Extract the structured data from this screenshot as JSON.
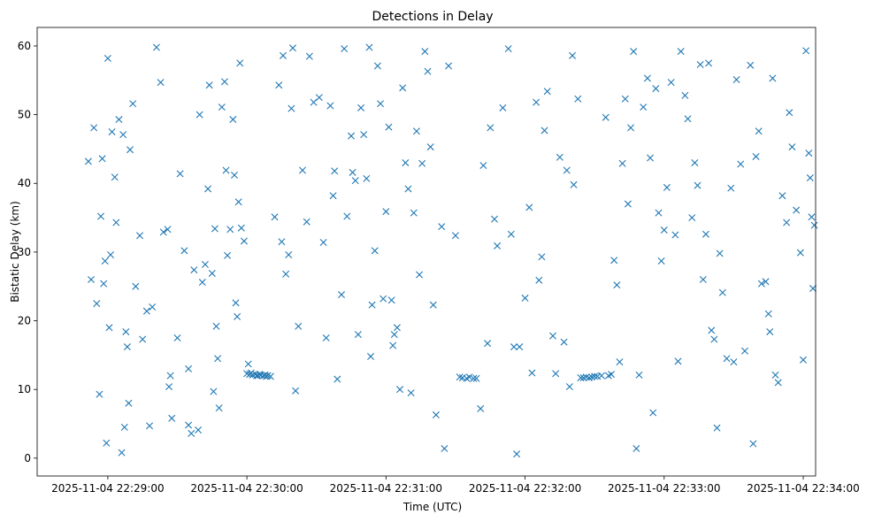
{
  "chart_data": {
    "type": "scatter",
    "title": "Detections in Delay",
    "xlabel": "Time (UTC)",
    "ylabel": "Bistatic Delay (km)",
    "marker": "x",
    "color": "#1f77b4",
    "grid": false,
    "xlim_minutes": [
      -0.508,
      5.089
    ],
    "ylim": [
      -2.6,
      62.7
    ],
    "x_ticks": [
      {
        "value": 0,
        "label": "2025-11-04 22:29:00"
      },
      {
        "value": 1,
        "label": "2025-11-04 22:30:00"
      },
      {
        "value": 2,
        "label": "2025-11-04 22:31:00"
      },
      {
        "value": 3,
        "label": "2025-11-04 22:32:00"
      },
      {
        "value": 4,
        "label": "2025-11-04 22:33:00"
      },
      {
        "value": 5,
        "label": "2025-11-04 22:34:00"
      }
    ],
    "y_ticks": [
      {
        "value": 0,
        "label": "0"
      },
      {
        "value": 10,
        "label": "10"
      },
      {
        "value": 20,
        "label": "20"
      },
      {
        "value": 30,
        "label": "30"
      },
      {
        "value": 40,
        "label": "40"
      },
      {
        "value": 50,
        "label": "50"
      },
      {
        "value": 60,
        "label": "60"
      }
    ],
    "series": [
      {
        "name": "detections",
        "x_unit": "minutes after 2025-11-04 22:29:00",
        "points": [
          [
            -0.14,
            43.2
          ],
          [
            -0.12,
            26.0
          ],
          [
            -0.1,
            48.1
          ],
          [
            -0.08,
            22.5
          ],
          [
            -0.06,
            9.3
          ],
          [
            -0.04,
            43.6
          ],
          [
            -0.05,
            35.2
          ],
          [
            -0.03,
            25.4
          ],
          [
            -0.02,
            28.7
          ],
          [
            -0.01,
            2.2
          ],
          [
            0.0,
            58.2
          ],
          [
            0.01,
            19.0
          ],
          [
            0.02,
            29.6
          ],
          [
            0.03,
            47.5
          ],
          [
            0.05,
            40.9
          ],
          [
            0.06,
            34.3
          ],
          [
            0.08,
            49.3
          ],
          [
            0.1,
            0.8
          ],
          [
            0.11,
            47.1
          ],
          [
            0.12,
            4.5
          ],
          [
            0.13,
            18.4
          ],
          [
            0.14,
            16.2
          ],
          [
            0.15,
            8.0
          ],
          [
            0.16,
            44.9
          ],
          [
            0.18,
            51.6
          ],
          [
            0.2,
            25.0
          ],
          [
            0.23,
            32.4
          ],
          [
            0.25,
            17.3
          ],
          [
            0.28,
            21.4
          ],
          [
            0.3,
            4.7
          ],
          [
            0.32,
            22.0
          ],
          [
            0.35,
            59.8
          ],
          [
            0.38,
            54.7
          ],
          [
            0.4,
            32.9
          ],
          [
            0.43,
            33.3
          ],
          [
            0.45,
            12.0
          ],
          [
            0.44,
            10.4
          ],
          [
            0.46,
            5.8
          ],
          [
            0.5,
            17.5
          ],
          [
            0.52,
            41.4
          ],
          [
            0.55,
            30.2
          ],
          [
            0.58,
            13.0
          ],
          [
            0.58,
            4.8
          ],
          [
            0.6,
            3.6
          ],
          [
            0.62,
            27.4
          ],
          [
            0.65,
            4.1
          ],
          [
            0.66,
            50.0
          ],
          [
            0.68,
            25.6
          ],
          [
            0.7,
            28.2
          ],
          [
            0.72,
            39.2
          ],
          [
            0.73,
            54.3
          ],
          [
            0.75,
            26.9
          ],
          [
            0.76,
            9.7
          ],
          [
            0.77,
            33.4
          ],
          [
            0.78,
            19.2
          ],
          [
            0.79,
            14.5
          ],
          [
            0.8,
            7.3
          ],
          [
            0.82,
            51.1
          ],
          [
            0.84,
            54.8
          ],
          [
            0.85,
            41.9
          ],
          [
            0.86,
            29.5
          ],
          [
            0.88,
            33.3
          ],
          [
            0.9,
            49.3
          ],
          [
            0.91,
            41.2
          ],
          [
            0.92,
            22.6
          ],
          [
            0.93,
            20.6
          ],
          [
            0.94,
            37.3
          ],
          [
            0.95,
            57.5
          ],
          [
            0.96,
            33.5
          ],
          [
            0.98,
            31.6
          ],
          [
            1.0,
            12.3
          ],
          [
            1.01,
            13.7
          ],
          [
            1.02,
            12.2
          ],
          [
            1.03,
            12.4
          ],
          [
            1.04,
            12.1
          ],
          [
            1.06,
            12.2
          ],
          [
            1.07,
            12.0
          ],
          [
            1.08,
            12.0
          ],
          [
            1.09,
            12.2
          ],
          [
            1.1,
            12.1
          ],
          [
            1.12,
            12.0
          ],
          [
            1.13,
            12.1
          ],
          [
            1.14,
            11.9
          ],
          [
            1.15,
            12.0
          ],
          [
            1.17,
            11.9
          ],
          [
            1.2,
            35.1
          ],
          [
            1.23,
            54.3
          ],
          [
            1.25,
            31.5
          ],
          [
            1.26,
            58.6
          ],
          [
            1.28,
            26.8
          ],
          [
            1.3,
            29.6
          ],
          [
            1.32,
            50.9
          ],
          [
            1.33,
            59.7
          ],
          [
            1.35,
            9.8
          ],
          [
            1.37,
            19.2
          ],
          [
            1.4,
            41.9
          ],
          [
            1.43,
            34.4
          ],
          [
            1.45,
            58.5
          ],
          [
            1.48,
            51.8
          ],
          [
            1.52,
            52.5
          ],
          [
            1.55,
            31.4
          ],
          [
            1.57,
            17.5
          ],
          [
            1.6,
            51.3
          ],
          [
            1.62,
            38.2
          ],
          [
            1.63,
            41.8
          ],
          [
            1.65,
            11.5
          ],
          [
            1.68,
            23.8
          ],
          [
            1.7,
            59.6
          ],
          [
            1.72,
            35.2
          ],
          [
            1.75,
            46.9
          ],
          [
            1.76,
            41.6
          ],
          [
            1.78,
            40.4
          ],
          [
            1.8,
            18.0
          ],
          [
            1.82,
            51.0
          ],
          [
            1.84,
            47.1
          ],
          [
            1.86,
            40.7
          ],
          [
            1.88,
            59.8
          ],
          [
            1.89,
            14.8
          ],
          [
            1.9,
            22.3
          ],
          [
            1.92,
            30.2
          ],
          [
            1.94,
            57.1
          ],
          [
            1.96,
            51.6
          ],
          [
            1.98,
            23.2
          ],
          [
            2.0,
            35.9
          ],
          [
            2.02,
            48.2
          ],
          [
            2.04,
            23.0
          ],
          [
            2.05,
            16.4
          ],
          [
            2.06,
            18.0
          ],
          [
            2.08,
            19.0
          ],
          [
            2.1,
            10.0
          ],
          [
            2.12,
            53.9
          ],
          [
            2.14,
            43.0
          ],
          [
            2.16,
            39.2
          ],
          [
            2.18,
            9.5
          ],
          [
            2.2,
            35.7
          ],
          [
            2.22,
            47.6
          ],
          [
            2.24,
            26.7
          ],
          [
            2.26,
            42.9
          ],
          [
            2.28,
            59.2
          ],
          [
            2.3,
            56.3
          ],
          [
            2.32,
            45.3
          ],
          [
            2.34,
            22.3
          ],
          [
            2.36,
            6.3
          ],
          [
            2.4,
            33.7
          ],
          [
            2.42,
            1.4
          ],
          [
            2.45,
            57.1
          ],
          [
            2.5,
            32.4
          ],
          [
            2.53,
            11.8
          ],
          [
            2.55,
            11.7
          ],
          [
            2.58,
            11.6
          ],
          [
            2.6,
            11.8
          ],
          [
            2.63,
            11.6
          ],
          [
            2.65,
            11.6
          ],
          [
            2.68,
            7.2
          ],
          [
            2.7,
            42.6
          ],
          [
            2.73,
            16.7
          ],
          [
            2.75,
            48.1
          ],
          [
            2.78,
            34.8
          ],
          [
            2.8,
            30.9
          ],
          [
            2.84,
            51.0
          ],
          [
            2.88,
            59.6
          ],
          [
            2.9,
            32.6
          ],
          [
            2.92,
            16.2
          ],
          [
            2.94,
            0.6
          ],
          [
            2.96,
            16.2
          ],
          [
            3.0,
            23.3
          ],
          [
            3.03,
            36.5
          ],
          [
            3.05,
            12.4
          ],
          [
            3.08,
            51.8
          ],
          [
            3.1,
            25.9
          ],
          [
            3.12,
            29.3
          ],
          [
            3.14,
            47.7
          ],
          [
            3.16,
            53.4
          ],
          [
            3.2,
            17.8
          ],
          [
            3.22,
            12.3
          ],
          [
            3.25,
            43.8
          ],
          [
            3.28,
            16.9
          ],
          [
            3.3,
            41.9
          ],
          [
            3.32,
            10.4
          ],
          [
            3.34,
            58.6
          ],
          [
            3.35,
            39.8
          ],
          [
            3.38,
            52.3
          ],
          [
            3.4,
            11.7
          ],
          [
            3.42,
            11.7
          ],
          [
            3.44,
            11.8
          ],
          [
            3.46,
            11.7
          ],
          [
            3.48,
            11.8
          ],
          [
            3.5,
            11.9
          ],
          [
            3.52,
            11.9
          ],
          [
            3.55,
            12.0
          ],
          [
            3.58,
            49.6
          ],
          [
            3.6,
            12.0
          ],
          [
            3.62,
            12.2
          ],
          [
            3.64,
            28.8
          ],
          [
            3.66,
            25.2
          ],
          [
            3.68,
            14.0
          ],
          [
            3.7,
            42.9
          ],
          [
            3.72,
            52.3
          ],
          [
            3.74,
            37.0
          ],
          [
            3.76,
            48.1
          ],
          [
            3.78,
            59.2
          ],
          [
            3.8,
            1.4
          ],
          [
            3.82,
            12.1
          ],
          [
            3.85,
            51.1
          ],
          [
            3.88,
            55.3
          ],
          [
            3.9,
            43.7
          ],
          [
            3.92,
            6.6
          ],
          [
            3.94,
            53.8
          ],
          [
            3.96,
            35.7
          ],
          [
            3.98,
            28.7
          ],
          [
            4.0,
            33.2
          ],
          [
            4.02,
            39.4
          ],
          [
            4.05,
            54.7
          ],
          [
            4.08,
            32.5
          ],
          [
            4.1,
            14.1
          ],
          [
            4.12,
            59.2
          ],
          [
            4.15,
            52.8
          ],
          [
            4.17,
            49.4
          ],
          [
            4.2,
            35.0
          ],
          [
            4.22,
            43.0
          ],
          [
            4.24,
            39.7
          ],
          [
            4.26,
            57.3
          ],
          [
            4.28,
            26.0
          ],
          [
            4.3,
            32.6
          ],
          [
            4.32,
            57.5
          ],
          [
            4.34,
            18.6
          ],
          [
            4.36,
            17.3
          ],
          [
            4.38,
            4.4
          ],
          [
            4.4,
            29.8
          ],
          [
            4.42,
            24.1
          ],
          [
            4.45,
            14.5
          ],
          [
            4.48,
            39.3
          ],
          [
            4.5,
            14.0
          ],
          [
            4.52,
            55.1
          ],
          [
            4.55,
            42.8
          ],
          [
            4.58,
            15.6
          ],
          [
            4.62,
            57.2
          ],
          [
            4.64,
            2.1
          ],
          [
            4.66,
            43.9
          ],
          [
            4.68,
            47.6
          ],
          [
            4.7,
            25.4
          ],
          [
            4.73,
            25.7
          ],
          [
            4.75,
            21.0
          ],
          [
            4.76,
            18.4
          ],
          [
            4.78,
            55.3
          ],
          [
            4.8,
            12.1
          ],
          [
            4.82,
            11.0
          ],
          [
            4.85,
            38.2
          ],
          [
            4.88,
            34.3
          ],
          [
            4.9,
            50.3
          ],
          [
            4.92,
            45.3
          ],
          [
            4.95,
            36.1
          ],
          [
            4.98,
            29.9
          ],
          [
            5.0,
            14.3
          ],
          [
            5.02,
            59.3
          ],
          [
            5.04,
            44.4
          ],
          [
            5.05,
            40.8
          ],
          [
            5.06,
            35.1
          ],
          [
            5.07,
            24.7
          ],
          [
            5.08,
            33.9
          ]
        ]
      }
    ]
  }
}
